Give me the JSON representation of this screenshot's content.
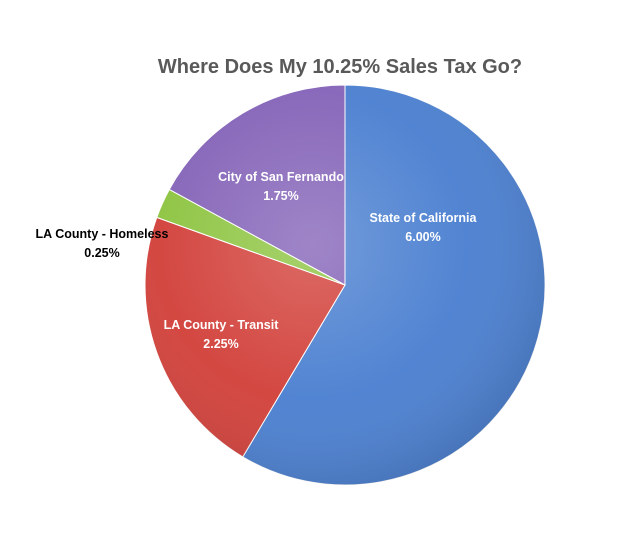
{
  "chart_data": {
    "type": "pie",
    "title": "Where Does My 10.25% Sales Tax Go?",
    "slices": [
      {
        "name": "State of California",
        "value": 6.0,
        "value_label": "6.00%",
        "color": "#4a7fd0"
      },
      {
        "name": "LA County - Transit",
        "value": 2.25,
        "value_label": "2.25%",
        "color": "#d2403a"
      },
      {
        "name": "LA County - Homeless",
        "value": 0.25,
        "value_label": "0.25%",
        "color": "#8dc441"
      },
      {
        "name": "City of San Fernando",
        "value": 1.75,
        "value_label": "1.75%",
        "color": "#8463b8"
      }
    ],
    "start": "12 o'clock",
    "direction": "clockwise",
    "legend": "none",
    "data_labels": "name and value"
  }
}
